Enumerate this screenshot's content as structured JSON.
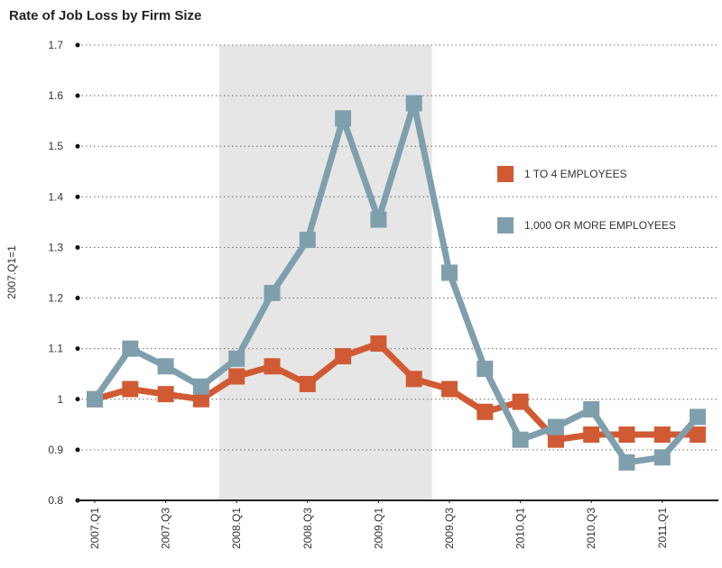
{
  "chart_data": {
    "type": "line",
    "title": "Rate of Job Loss by Firm Size",
    "ylabel": "2007.Q1=1",
    "xlabel": "",
    "ylim": [
      0.8,
      1.7
    ],
    "y_ticks": [
      "0.8",
      "0.9",
      "1",
      "1.1",
      "1.2",
      "1.3",
      "1.4",
      "1.5",
      "1.6",
      "1.7"
    ],
    "y_tick_values": [
      0.8,
      0.9,
      1.0,
      1.1,
      1.2,
      1.3,
      1.4,
      1.5,
      1.6,
      1.7
    ],
    "categories": [
      "2007.Q1",
      "2007.Q2",
      "2007.Q3",
      "2007.Q4",
      "2008.Q1",
      "2008.Q2",
      "2008.Q3",
      "2008.Q4",
      "2009.Q1",
      "2009.Q2",
      "2009.Q3",
      "2009.Q4",
      "2010.Q1",
      "2010.Q2",
      "2010.Q3",
      "2010.Q4",
      "2011.Q1",
      "2011.Q2"
    ],
    "x_tick_labels": [
      "2007.Q1",
      "2007.Q3",
      "2008.Q1",
      "2008.Q3",
      "2009.Q1",
      "2009.Q3",
      "2010.Q1",
      "2010.Q3",
      "2011.Q1"
    ],
    "shaded_region": {
      "from": "2007.Q4",
      "to": "2009.Q2",
      "color": "#e6e6e6"
    },
    "grid": "horizontal-dotted",
    "legend_position": "right",
    "series": [
      {
        "name": "1 TO 4 EMPLOYEES",
        "color": "#d05a33",
        "values": [
          1.0,
          1.02,
          1.01,
          1.0,
          1.045,
          1.065,
          1.03,
          1.085,
          1.11,
          1.04,
          1.02,
          0.975,
          0.995,
          0.92,
          0.93,
          0.93,
          0.93,
          0.93
        ]
      },
      {
        "name": "1,000 OR MORE EMPLOYEES",
        "color": "#7f9fad",
        "values": [
          1.0,
          1.1,
          1.065,
          1.025,
          1.08,
          1.21,
          1.315,
          1.555,
          1.355,
          1.585,
          1.25,
          1.06,
          0.92,
          0.945,
          0.98,
          0.875,
          0.885,
          0.965
        ]
      }
    ]
  }
}
